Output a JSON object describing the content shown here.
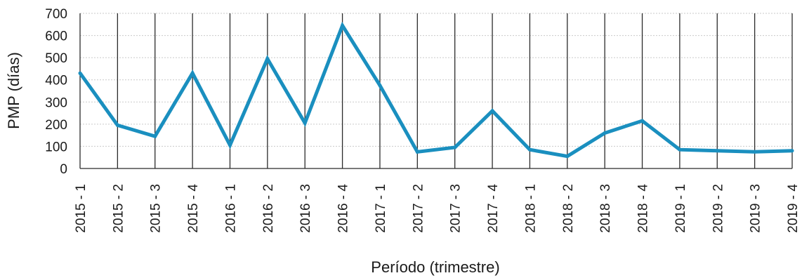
{
  "chart_data": {
    "type": "line",
    "title": "",
    "xlabel": "Período (trimestre)",
    "ylabel": "PMP (días)",
    "ylim": [
      0,
      700
    ],
    "yticks": [
      0,
      100,
      200,
      300,
      400,
      500,
      600,
      700
    ],
    "grid": {
      "vertical": true,
      "horizontal": true
    },
    "legend": "none",
    "categories": [
      "2015 - 1",
      "2015 - 2",
      "2015 - 3",
      "2015 - 4",
      "2016 - 1",
      "2016 - 2",
      "2016 - 3",
      "2016 - 4",
      "2017 - 1",
      "2017 - 2",
      "2017 - 3",
      "2017 - 4",
      "2018 - 1",
      "2018 - 2",
      "2018 - 3",
      "2018 - 4",
      "2019 - 1",
      "2019 - 2",
      "2019 - 3",
      "2019 - 4"
    ],
    "series": [
      {
        "color": "#1a8fbf",
        "values": [
          430,
          195,
          145,
          430,
          105,
          495,
          205,
          645,
          375,
          75,
          95,
          260,
          85,
          55,
          160,
          215,
          85,
          80,
          75,
          80
        ]
      }
    ]
  }
}
